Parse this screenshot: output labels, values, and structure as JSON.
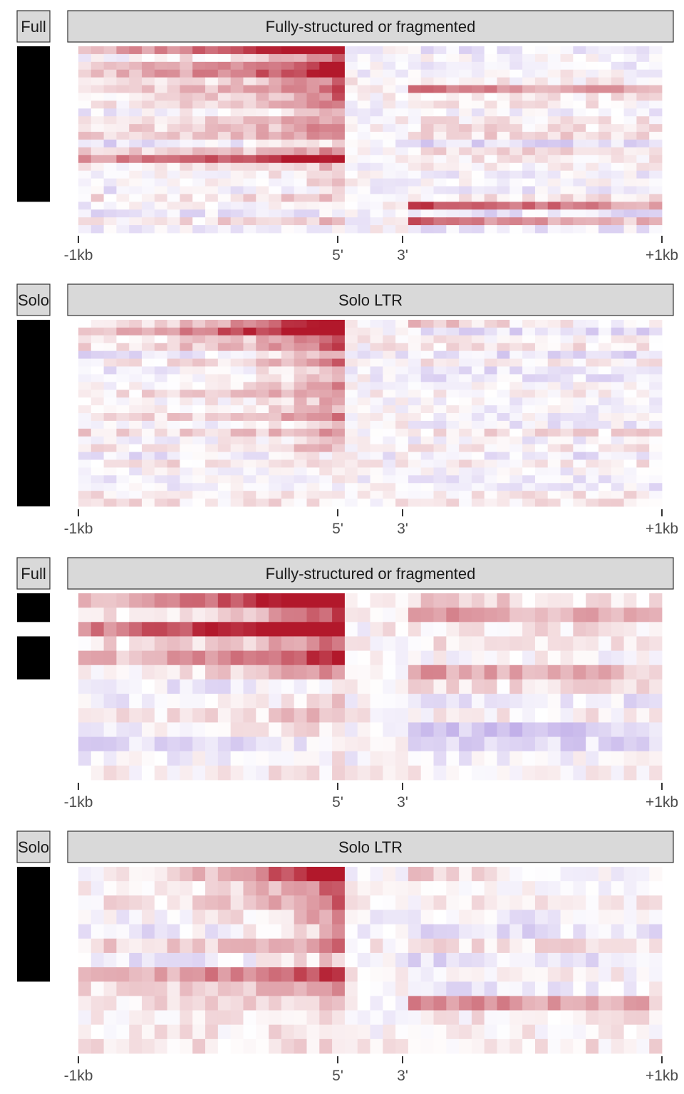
{
  "colors": {
    "high": "#b2182b",
    "mid": "#ffffff",
    "low": "#6a3fc9",
    "strip_fill": "#d9d9d9",
    "strip_border": "#333333",
    "annotation_bar": "#000000"
  },
  "chart_data": [
    {
      "type": "heatmap",
      "panel_label": "Full",
      "title": "Fully-structured or fragmented",
      "x_tick_labels": [
        "-1kb",
        "5'",
        "3'",
        "+1kb"
      ],
      "rows": 24,
      "columns": 46,
      "ltr_start_column": 20,
      "ltr_end_column": 25,
      "annotation_blocks": [
        [
          0,
          19
        ]
      ],
      "highlight_rows": [
        {
          "row": 0,
          "region": "upstream",
          "intensity": 0.9
        },
        {
          "row": 2,
          "region": "upstream",
          "intensity": 0.55
        },
        {
          "row": 3,
          "region": "upstream",
          "intensity": 0.5
        },
        {
          "row": 14,
          "region": "upstream",
          "intensity": 0.75
        },
        {
          "row": 20,
          "region": "downstream",
          "intensity": 0.95
        },
        {
          "row": 22,
          "region": "downstream",
          "intensity": 0.85
        },
        {
          "row": 22,
          "region": "upstream",
          "intensity": 0.4
        },
        {
          "row": 5,
          "region": "downstream",
          "intensity": 0.4
        }
      ],
      "seed": 11
    },
    {
      "type": "heatmap",
      "panel_label": "Solo",
      "title": "Solo LTR",
      "x_tick_labels": [
        "-1kb",
        "5'",
        "3'",
        "+1kb"
      ],
      "rows": 24,
      "columns": 46,
      "ltr_start_column": 20,
      "ltr_end_column": 25,
      "annotation_blocks": [
        [
          0,
          23
        ]
      ],
      "highlight_rows": [
        {
          "row": 0,
          "region": "both",
          "intensity": 0.85
        },
        {
          "row": 1,
          "region": "upstream",
          "intensity": 0.95
        },
        {
          "row": 12,
          "region": "upstream",
          "intensity": 0.3
        }
      ],
      "seed": 23
    },
    {
      "type": "heatmap",
      "panel_label": "Full",
      "title": "Fully-structured or fragmented",
      "x_tick_labels": [
        "-1kb",
        "5'",
        "3'",
        "+1kb"
      ],
      "rows": 13,
      "columns": 46,
      "ltr_start_column": 20,
      "ltr_end_column": 25,
      "annotation_blocks": [
        [
          0,
          1
        ],
        [
          3,
          5
        ]
      ],
      "highlight_rows": [
        {
          "row": 0,
          "region": "upstream",
          "intensity": 0.9
        },
        {
          "row": 2,
          "region": "upstream",
          "intensity": 0.85
        },
        {
          "row": 4,
          "region": "upstream",
          "intensity": 0.5
        },
        {
          "row": 0,
          "region": "downstream",
          "intensity": 0.35
        },
        {
          "row": 1,
          "region": "downstream",
          "intensity": 0.4
        },
        {
          "row": 5,
          "region": "downstream",
          "intensity": 0.4
        },
        {
          "row": 6,
          "region": "upstream",
          "intensity": -0.45
        },
        {
          "row": 9,
          "region": "downstream",
          "intensity": -0.3
        }
      ],
      "seed": 37
    },
    {
      "type": "heatmap",
      "panel_label": "Solo",
      "title": "Solo LTR",
      "x_tick_labels": [
        "-1kb",
        "5'",
        "3'",
        "+1kb"
      ],
      "rows": 13,
      "columns": 46,
      "ltr_start_column": 20,
      "ltr_end_column": 25,
      "annotation_blocks": [
        [
          0,
          7
        ]
      ],
      "highlight_rows": [
        {
          "row": 0,
          "region": "both",
          "intensity": 0.8
        },
        {
          "row": 7,
          "region": "upstream",
          "intensity": 0.55
        },
        {
          "row": 8,
          "region": "downstream",
          "intensity": -0.3
        },
        {
          "row": 9,
          "region": "downstream",
          "intensity": 0.45
        }
      ],
      "seed": 53
    }
  ]
}
